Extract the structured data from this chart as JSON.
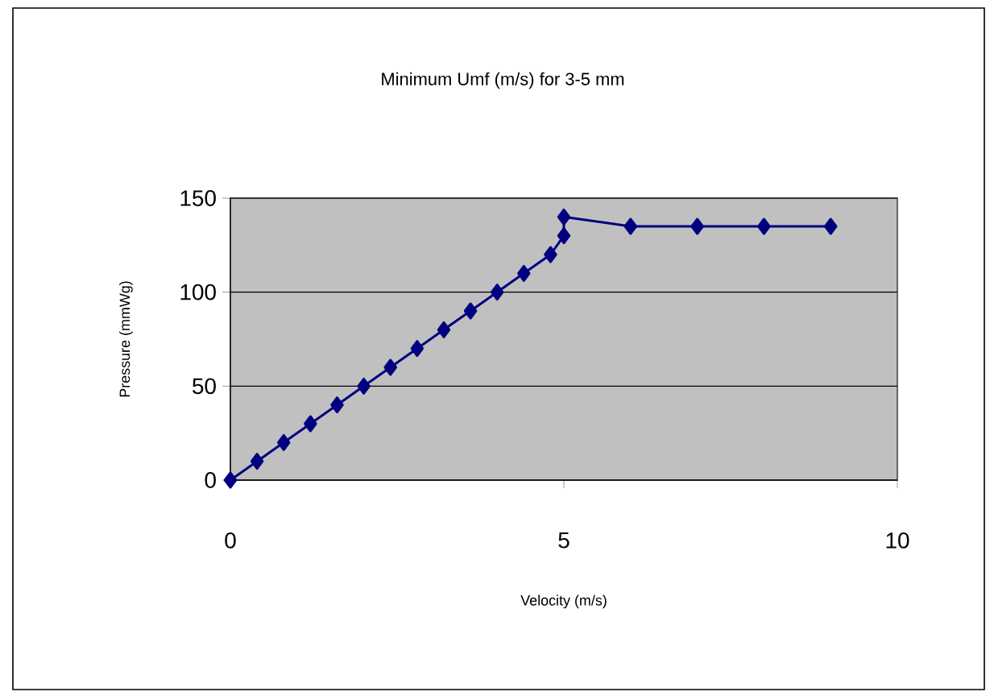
{
  "chart_data": {
    "type": "line",
    "title": "Minimum Umf (m/s) for 3-5 mm",
    "xlabel": "Velocity (m/s)",
    "ylabel": "Pressure (mmWg)",
    "x": [
      0,
      0.4,
      0.8,
      1.2,
      1.6,
      2.0,
      2.4,
      2.8,
      3.2,
      3.6,
      4.0,
      4.4,
      4.8,
      5.0,
      5.0,
      6,
      7,
      8,
      9
    ],
    "values": [
      0,
      10,
      20,
      30,
      40,
      50,
      60,
      70,
      80,
      90,
      100,
      110,
      120,
      130,
      140,
      135,
      135,
      135,
      135
    ],
    "color": "#000080",
    "marker": "diamond",
    "line_style": "solid",
    "grid": "y",
    "xlim": [
      0,
      10
    ],
    "xticks": [
      0,
      5,
      10
    ],
    "ylim": [
      0,
      150
    ],
    "yticks": [
      0,
      50,
      100,
      150
    ]
  }
}
